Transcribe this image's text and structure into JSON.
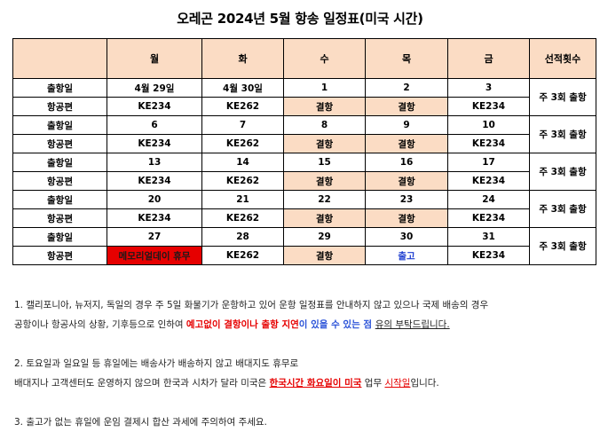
{
  "title": "오레곤 2024년 5월 항송 일정표(미국 시간)",
  "headers": [
    "",
    "월",
    "화",
    "수",
    "목",
    "금",
    "선적횟수"
  ],
  "weeks": [
    {
      "dep_label": "출항일",
      "dates": [
        "4월 29일",
        "4월 30일",
        "1",
        "2",
        "3"
      ],
      "flight_label": "항공편",
      "flights": [
        "KE234",
        "KE262",
        "결항",
        "결항",
        "KE234"
      ],
      "freq": "주 3회 출항"
    },
    {
      "dep_label": "출항일",
      "dates": [
        "6",
        "7",
        "8",
        "9",
        "10"
      ],
      "flight_label": "항공편",
      "flights": [
        "KE234",
        "KE262",
        "결항",
        "결항",
        "KE234"
      ],
      "freq": "주 3회 출항"
    },
    {
      "dep_label": "출항일",
      "dates": [
        "13",
        "14",
        "15",
        "16",
        "17"
      ],
      "flight_label": "항공편",
      "flights": [
        "KE234",
        "KE262",
        "결항",
        "결항",
        "KE234"
      ],
      "freq": "주 3회 출항"
    },
    {
      "dep_label": "출항일",
      "dates": [
        "20",
        "21",
        "22",
        "23",
        "24"
      ],
      "flight_label": "항공편",
      "flights": [
        "KE234",
        "KE262",
        "결항",
        "결항",
        "KE234"
      ],
      "freq": "주 3회 출항"
    },
    {
      "dep_label": "출항일",
      "dates": [
        "27",
        "28",
        "29",
        "30",
        "31"
      ],
      "flight_label": "항공편",
      "flights": [
        "메모리얼데이 휴무",
        "KE262",
        "결항",
        "출고",
        "KE234"
      ],
      "freq": "주 3회 출항"
    }
  ],
  "colors": {
    "header_bg": "#fbdcc4",
    "cancel_bg": "#fbdcc4",
    "holiday_bg": "#e60000",
    "ship_text": "#1f3fd0",
    "alert_red": "#e60000",
    "alert_blue": "#2a52d8"
  },
  "notes": {
    "n1_a": "1. 캘리포니아, 뉴저지, 독일의 경우 주 5일 화물기가 운항하고 있어 운항 일정표를 안내하지 않고 있으나 국제 배송의 경우",
    "n1_b": "공항이나 항공사의 상황, 기후등으로 인하여 ",
    "n1_red": "예고없이 결항이나 출항 지연",
    "n1_blue": "이 있을 수 있는 점 ",
    "n1_end": "유의 부탁드립니다.",
    "n2_a": "2. 토요일과 일요일 등 휴일에는 배송사가 배송하지 않고 배대지도 휴무로",
    "n2_b": "배대지나 고객센터도 운영하지 않으며 한국과 시차가 달라 미국은 ",
    "n2_red": "한국시간 화요일이 미국",
    "n2_mid": " 업무 ",
    "n2_red2": "시작일",
    "n2_end": "입니다.",
    "n3": "3. 출고가 없는 휴일에 운임 결제시 합산 과세에 주의하여 주세요."
  }
}
